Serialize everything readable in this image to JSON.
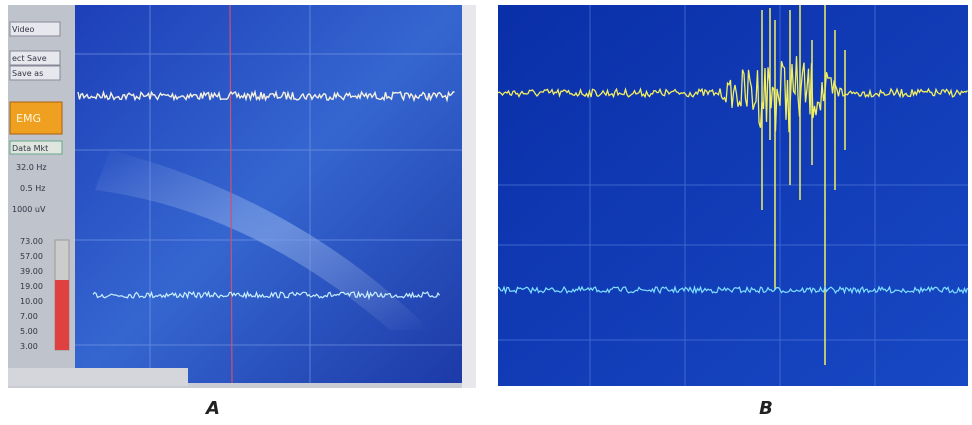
{
  "panels": [
    {
      "label": "A",
      "sidebar": {
        "buttons": [
          "Video",
          "ect Save",
          "Save as"
        ],
        "mode": "EMG",
        "status": "Data Mkt",
        "settings": [
          "32.0 Hz",
          "0.5 Hz",
          "1000 uV"
        ],
        "scale": [
          "73.00",
          "57.00",
          "39.00",
          "19.00",
          "10.00",
          "7.00",
          "5.00",
          "3.00"
        ]
      }
    },
    {
      "label": "B"
    }
  ]
}
